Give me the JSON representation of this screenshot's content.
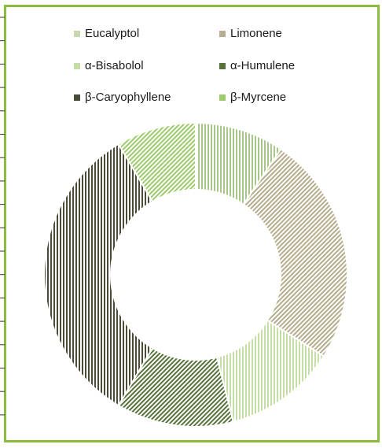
{
  "chart_data": {
    "type": "pie",
    "subtype": "doughnut",
    "legend_position": "top",
    "series": [
      {
        "name": "Eucalyptol",
        "value": 9.5,
        "color": "#a9c68a",
        "pattern": "vertical"
      },
      {
        "name": "Limonene",
        "value": 24.5,
        "color": "#b5ac8c",
        "pattern": "diagonal"
      },
      {
        "name": "α-Bisabolol",
        "value": 12.0,
        "color": "#c6dda6",
        "pattern": "vertical"
      },
      {
        "name": "α-Humulene",
        "value": 12.5,
        "color": "#55733a",
        "pattern": "diagonal"
      },
      {
        "name": "β-Caryophyllene",
        "value": 33.0,
        "color": "#4a4a36",
        "pattern": "vertical"
      },
      {
        "name": "β-Myrcene",
        "value": 8.5,
        "color": "#9bcb6a",
        "pattern": "diagonal"
      }
    ]
  },
  "legend": {
    "items": [
      {
        "label": "Eucalyptol",
        "color": "#c8d9b0"
      },
      {
        "label": "Limonene",
        "color": "#b7ad8f"
      },
      {
        "label": "α-Bisabolol",
        "color": "#c6dda6"
      },
      {
        "label": "α-Humulene",
        "color": "#55733a"
      },
      {
        "label": "β-Caryophyllene",
        "color": "#4a4a36"
      },
      {
        "label": "β-Myrcene",
        "color": "#9bcb6a"
      }
    ]
  },
  "colors": {
    "frame_border": "#8dbb3f",
    "tick_color": "#333333"
  }
}
